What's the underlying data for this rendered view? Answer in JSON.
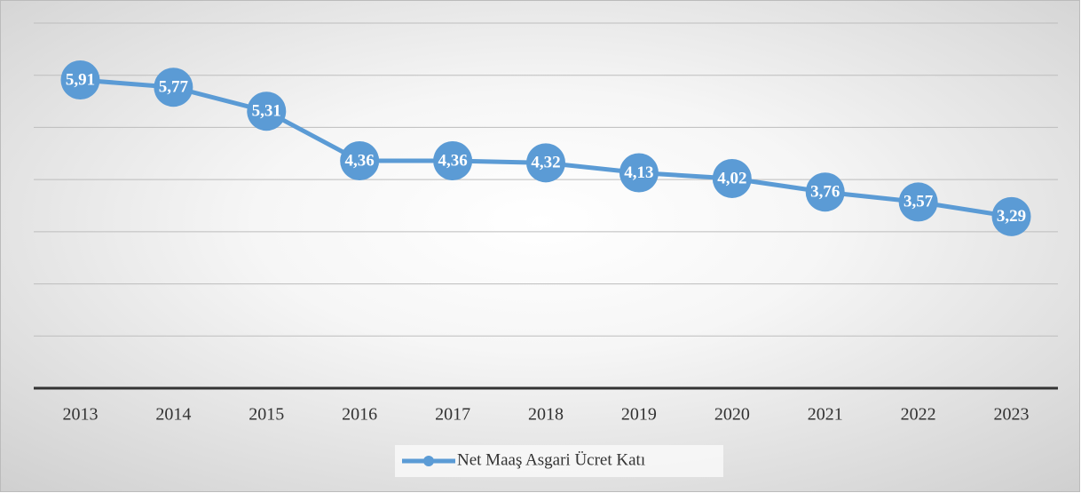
{
  "chart_data": {
    "type": "line",
    "categories": [
      "2013",
      "2014",
      "2015",
      "2016",
      "2017",
      "2018",
      "2019",
      "2020",
      "2021",
      "2022",
      "2023"
    ],
    "series": [
      {
        "name": "Net Maaş Asgari Ücret Katı",
        "color": "#5b9bd5",
        "values": [
          5.91,
          5.77,
          5.31,
          4.36,
          4.36,
          4.32,
          4.13,
          4.02,
          3.76,
          3.57,
          3.29
        ],
        "value_labels": [
          "5,91",
          "5,77",
          "5,31",
          "4,36",
          "4,36",
          "4,32",
          "4,13",
          "4,02",
          "3,76",
          "3,57",
          "3,29"
        ]
      }
    ],
    "ylim": [
      0,
      7
    ],
    "yticks": [
      0,
      1,
      2,
      3,
      4,
      5,
      6,
      7
    ],
    "grid": true,
    "legend": "bottom"
  }
}
